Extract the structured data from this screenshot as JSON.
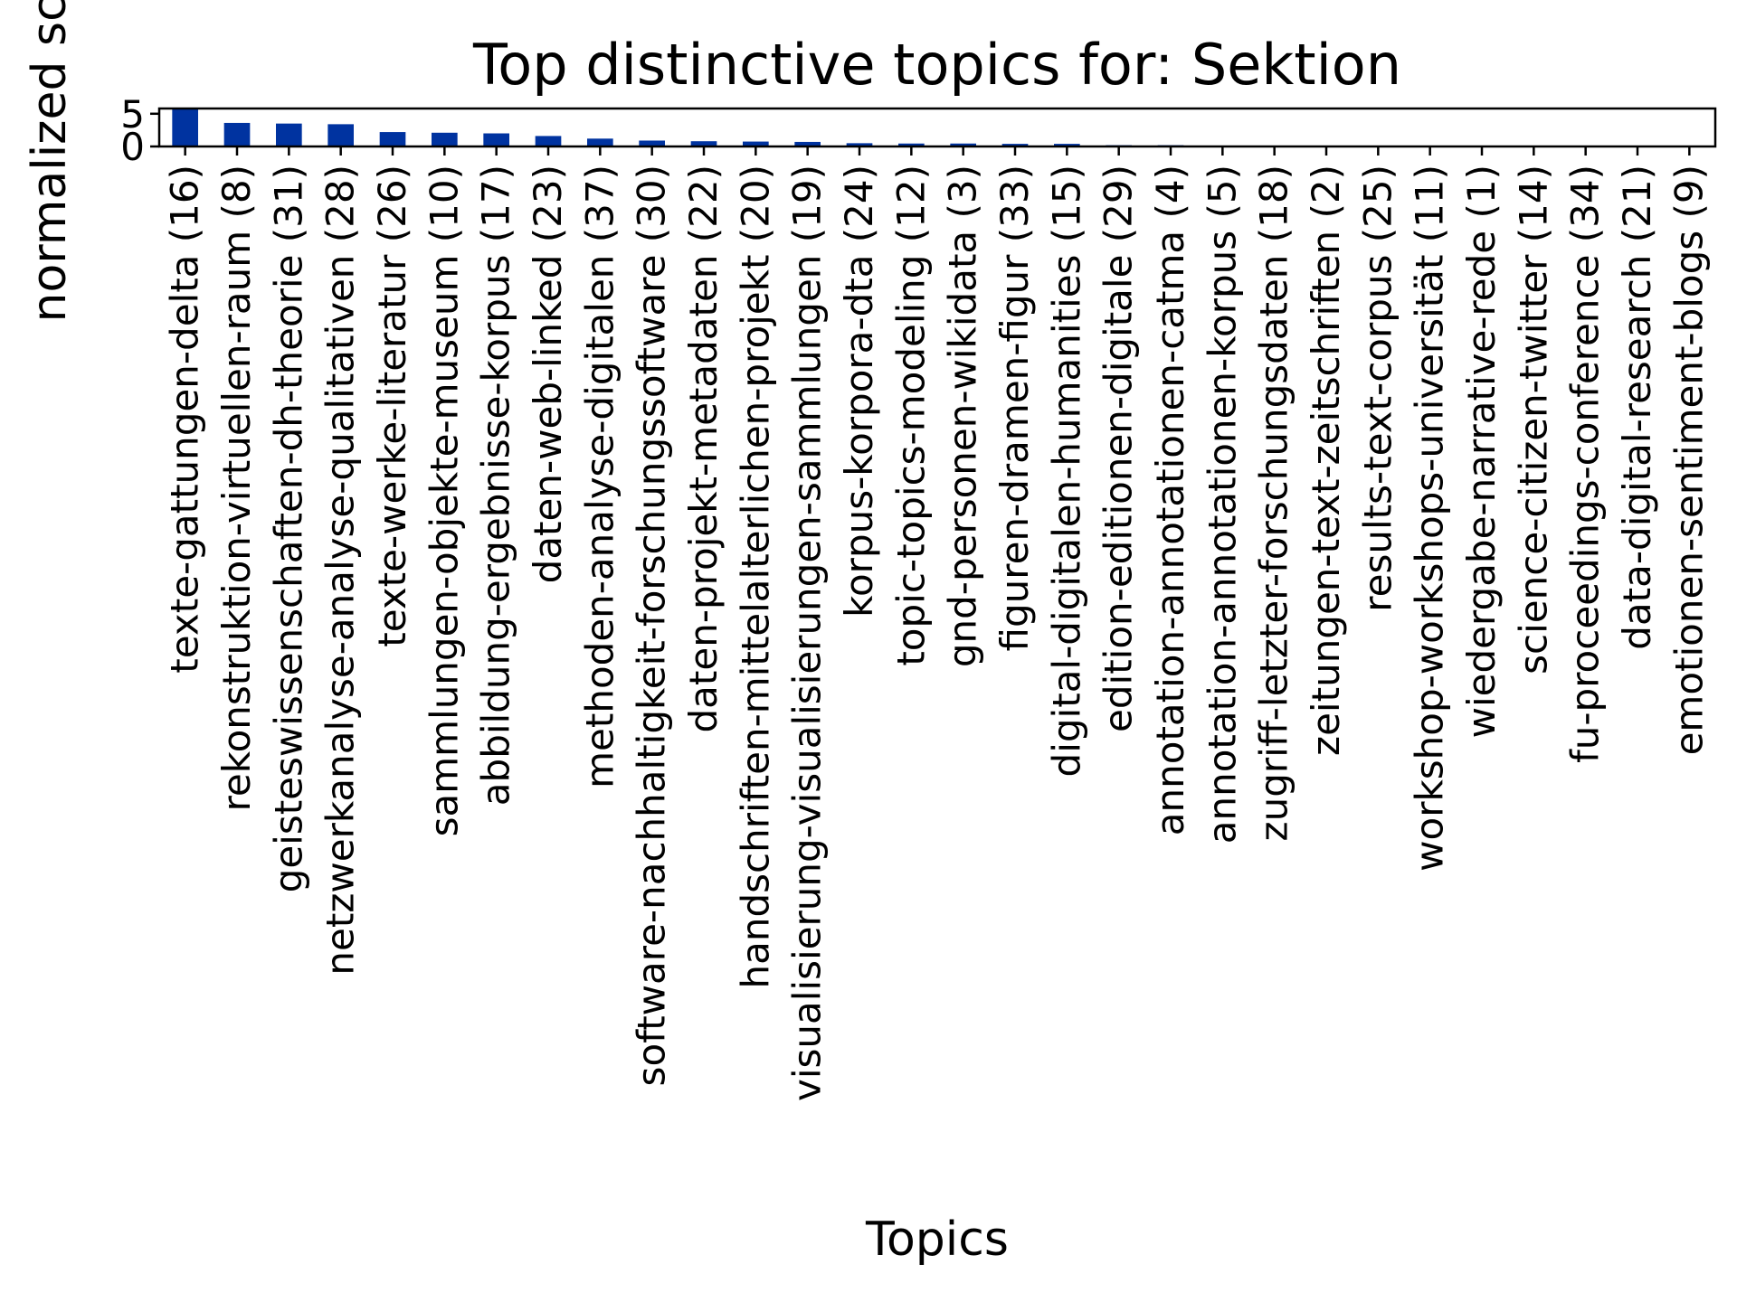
{
  "chart_data": {
    "type": "bar",
    "title": "Top distinctive topics for: Sektion",
    "xlabel": "Topics",
    "ylabel": "normalized sco",
    "ylim": [
      0,
      5.8
    ],
    "yticks": [
      0,
      5
    ],
    "bar_color": "#0033a0",
    "grid": false,
    "categories": [
      "texte-gattungen-delta (16)",
      "rekonstruktion-virtuellen-raum (8)",
      "geisteswissenschaften-dh-theorie (31)",
      "netzwerkanalyse-analyse-qualitativen (28)",
      "texte-werke-literatur (26)",
      "sammlungen-objekte-museum (10)",
      "abbildung-ergebnisse-korpus (17)",
      "daten-web-linked (23)",
      "methoden-analyse-digitalen (37)",
      "software-nachhaltigkeit-forschungssoftware (30)",
      "daten-projekt-metadaten (22)",
      "handschriften-mittelalterlichen-projekt (20)",
      "visualisierung-visualisierungen-sammlungen (19)",
      "korpus-korpora-dta (24)",
      "topic-topics-modeling (12)",
      "gnd-personen-wikidata (3)",
      "figuren-dramen-figur (33)",
      "digital-digitalen-humanities (15)",
      "edition-editionen-digitale (29)",
      "annotation-annotationen-catma (4)",
      "annotation-annotationen-korpus (5)",
      "zugriff-letzter-forschungsdaten (18)",
      "zeitungen-text-zeitschriften (2)",
      "results-text-corpus (25)",
      "workshop-workshops-universität (11)",
      "wiedergabe-narrative-rede (1)",
      "science-citizen-twitter (14)",
      "fu-proceedings-conference (34)",
      "data-digital-research (21)",
      "emotionen-sentiment-blogs (9)"
    ],
    "values": [
      5.8,
      3.6,
      3.5,
      3.4,
      2.2,
      2.1,
      2.0,
      1.6,
      1.2,
      0.9,
      0.8,
      0.75,
      0.7,
      0.5,
      0.45,
      0.45,
      0.4,
      0.4,
      0.2,
      0.2,
      0.1,
      0.08,
      0.05,
      0.05,
      0.05,
      0.04,
      0.03,
      0.03,
      0.02,
      0.02
    ]
  }
}
